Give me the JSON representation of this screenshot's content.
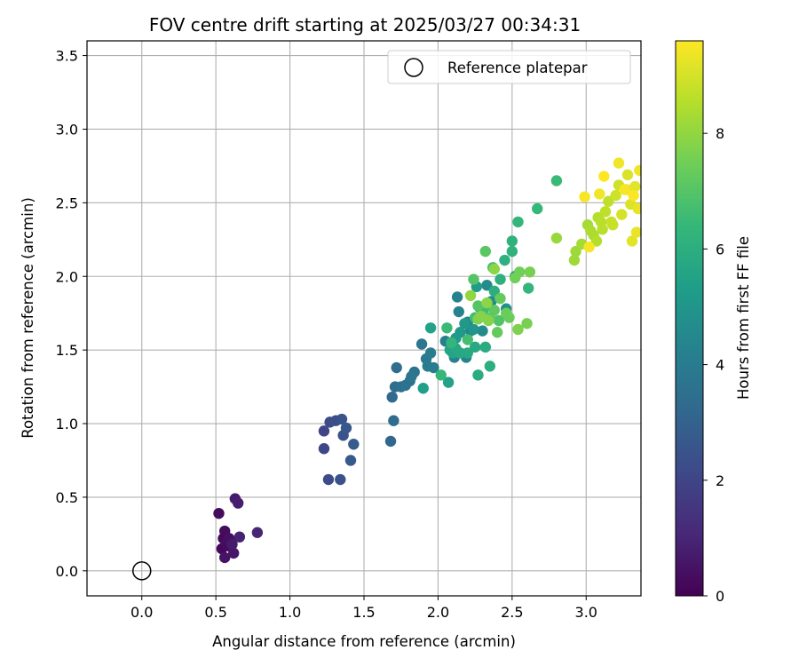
{
  "chart_data": {
    "type": "scatter",
    "title": "FOV centre drift starting at 2025/03/27 00:34:31",
    "xlabel": "Angular distance from reference (arcmin)",
    "ylabel": "Rotation from reference (arcmin)",
    "xlim": [
      -0.37,
      3.37
    ],
    "ylim": [
      -0.17,
      3.6
    ],
    "x_ticks": [
      "0.0",
      "0.5",
      "1.0",
      "1.5",
      "2.0",
      "2.5",
      "3.0"
    ],
    "y_ticks": [
      "0.0",
      "0.5",
      "1.0",
      "1.5",
      "2.0",
      "2.5",
      "3.0",
      "3.5"
    ],
    "grid": true,
    "legend": {
      "placement": "top-right",
      "entries": [
        "Reference platepar"
      ]
    },
    "reference_point": {
      "name": "Reference platepar",
      "x": 0.0,
      "y": 0.0,
      "marker": "open-circle"
    },
    "colorbar": {
      "label": "Hours from first FF file",
      "colormap": "viridis",
      "range": [
        0,
        9.6
      ],
      "ticks": [
        "0",
        "2",
        "4",
        "6",
        "8"
      ]
    },
    "colors": {
      "viridis": [
        "#440154",
        "#482878",
        "#3e4989",
        "#31688e",
        "#26828e",
        "#1f9e89",
        "#35b779",
        "#6ece58",
        "#b5de2b",
        "#fde725"
      ],
      "grid": "#b0b0b0",
      "axes": "#000000"
    },
    "points": [
      [
        0.52,
        0.39,
        0.3
      ],
      [
        0.54,
        0.15,
        0.2
      ],
      [
        0.55,
        0.22,
        0.2
      ],
      [
        0.56,
        0.27,
        0.3
      ],
      [
        0.57,
        0.19,
        0.4
      ],
      [
        0.58,
        0.17,
        0.3
      ],
      [
        0.56,
        0.09,
        0.5
      ],
      [
        0.6,
        0.2,
        0.5
      ],
      [
        0.62,
        0.12,
        0.6
      ],
      [
        0.63,
        0.49,
        0.7
      ],
      [
        0.65,
        0.46,
        0.8
      ],
      [
        0.66,
        0.23,
        0.9
      ],
      [
        0.78,
        0.26,
        1.0
      ],
      [
        0.59,
        0.22,
        0.4
      ],
      [
        0.61,
        0.18,
        0.7
      ],
      [
        1.23,
        0.95,
        2.0
      ],
      [
        1.23,
        0.83,
        2.1
      ],
      [
        1.26,
        0.62,
        2.2
      ],
      [
        1.27,
        1.01,
        2.2
      ],
      [
        1.31,
        1.02,
        2.3
      ],
      [
        1.34,
        0.62,
        2.4
      ],
      [
        1.35,
        1.03,
        2.5
      ],
      [
        1.36,
        0.92,
        2.5
      ],
      [
        1.38,
        0.97,
        2.6
      ],
      [
        1.41,
        0.75,
        2.7
      ],
      [
        1.43,
        0.86,
        2.8
      ],
      [
        1.68,
        0.88,
        3.2
      ],
      [
        1.69,
        1.18,
        3.3
      ],
      [
        1.7,
        1.02,
        3.4
      ],
      [
        1.71,
        1.25,
        3.5
      ],
      [
        1.72,
        1.38,
        3.5
      ],
      [
        1.75,
        1.25,
        3.6
      ],
      [
        1.78,
        1.26,
        3.6
      ],
      [
        1.81,
        1.29,
        3.7
      ],
      [
        1.84,
        1.35,
        3.7
      ],
      [
        1.82,
        1.32,
        3.8
      ],
      [
        1.89,
        1.54,
        3.8
      ],
      [
        1.92,
        1.44,
        3.9
      ],
      [
        1.93,
        1.39,
        4.0
      ],
      [
        1.95,
        1.48,
        4.0
      ],
      [
        1.97,
        1.38,
        4.1
      ],
      [
        2.05,
        1.56,
        4.1
      ],
      [
        2.11,
        1.45,
        4.2
      ],
      [
        2.13,
        1.86,
        4.3
      ],
      [
        2.14,
        1.76,
        4.3
      ],
      [
        2.19,
        1.45,
        4.3
      ],
      [
        2.2,
        1.69,
        4.4
      ],
      [
        2.22,
        1.63,
        4.5
      ],
      [
        2.28,
        1.79,
        4.5
      ],
      [
        2.3,
        1.63,
        4.6
      ],
      [
        2.33,
        1.94,
        4.6
      ],
      [
        2.36,
        1.83,
        4.7
      ],
      [
        2.46,
        1.78,
        4.8
      ],
      [
        2.52,
        2.0,
        4.9
      ],
      [
        2.24,
        1.64,
        5.0
      ],
      [
        2.18,
        1.68,
        5.1
      ],
      [
        2.15,
        1.62,
        5.1
      ],
      [
        2.12,
        1.58,
        5.2
      ],
      [
        2.26,
        1.93,
        5.3
      ],
      [
        1.9,
        1.24,
        5.4
      ],
      [
        1.95,
        1.65,
        5.5
      ],
      [
        2.07,
        1.28,
        5.5
      ],
      [
        2.08,
        1.5,
        5.6
      ],
      [
        2.1,
        1.48,
        5.6
      ],
      [
        2.12,
        1.51,
        5.7
      ],
      [
        2.15,
        1.48,
        5.7
      ],
      [
        2.2,
        1.48,
        5.8
      ],
      [
        2.25,
        1.52,
        5.8
      ],
      [
        2.27,
        1.33,
        5.9
      ],
      [
        2.32,
        1.52,
        5.9
      ],
      [
        2.35,
        1.39,
        6.0
      ],
      [
        2.38,
        1.9,
        6.0
      ],
      [
        2.42,
        1.98,
        6.1
      ],
      [
        2.45,
        2.11,
        6.1
      ],
      [
        2.5,
        2.17,
        6.2
      ],
      [
        2.5,
        2.24,
        6.2
      ],
      [
        2.54,
        2.37,
        6.3
      ],
      [
        2.61,
        1.92,
        6.3
      ],
      [
        2.67,
        2.46,
        6.4
      ],
      [
        2.8,
        2.65,
        6.5
      ],
      [
        2.25,
        1.72,
        6.6
      ],
      [
        2.31,
        1.78,
        6.6
      ],
      [
        2.06,
        1.65,
        6.5
      ],
      [
        2.02,
        1.33,
        6.4
      ],
      [
        2.09,
        1.55,
        6.3
      ],
      [
        2.2,
        1.57,
        6.7
      ],
      [
        2.37,
        2.06,
        6.8
      ],
      [
        2.41,
        1.7,
        6.9
      ],
      [
        2.24,
        1.98,
        7.0
      ],
      [
        2.27,
        1.8,
        7.0
      ],
      [
        2.32,
        2.17,
        7.1
      ],
      [
        2.35,
        1.72,
        7.2
      ],
      [
        2.38,
        1.77,
        7.2
      ],
      [
        2.4,
        1.62,
        7.3
      ],
      [
        2.42,
        1.85,
        7.3
      ],
      [
        2.46,
        1.75,
        7.4
      ],
      [
        2.48,
        1.72,
        7.4
      ],
      [
        2.52,
        1.99,
        7.5
      ],
      [
        2.55,
        2.03,
        7.5
      ],
      [
        2.6,
        1.68,
        7.6
      ],
      [
        2.62,
        2.03,
        7.6
      ],
      [
        2.54,
        1.64,
        7.7
      ],
      [
        2.27,
        1.71,
        7.7
      ],
      [
        2.29,
        1.73,
        7.8
      ],
      [
        2.34,
        1.7,
        7.8
      ],
      [
        2.33,
        1.82,
        7.9
      ],
      [
        2.38,
        2.05,
        7.9
      ],
      [
        2.22,
        1.87,
        8.0
      ],
      [
        2.8,
        2.26,
        8.1
      ],
      [
        2.92,
        2.11,
        8.2
      ],
      [
        2.93,
        2.17,
        8.2
      ],
      [
        2.97,
        2.22,
        8.3
      ],
      [
        3.01,
        2.35,
        8.3
      ],
      [
        3.03,
        2.31,
        8.4
      ],
      [
        3.05,
        2.28,
        8.4
      ],
      [
        3.07,
        2.24,
        8.5
      ],
      [
        3.08,
        2.4,
        8.5
      ],
      [
        3.1,
        2.37,
        8.6
      ],
      [
        3.11,
        2.32,
        8.6
      ],
      [
        3.13,
        2.44,
        8.7
      ],
      [
        3.15,
        2.51,
        8.7
      ],
      [
        3.17,
        2.37,
        8.8
      ],
      [
        3.18,
        2.35,
        8.8
      ],
      [
        3.2,
        2.55,
        8.9
      ],
      [
        3.22,
        2.62,
        8.9
      ],
      [
        3.24,
        2.42,
        9.0
      ],
      [
        3.27,
        2.59,
        9.0
      ],
      [
        3.28,
        2.69,
        9.1
      ],
      [
        3.3,
        2.49,
        9.1
      ],
      [
        3.31,
        2.24,
        9.2
      ],
      [
        3.33,
        2.61,
        9.2
      ],
      [
        3.34,
        2.3,
        9.3
      ],
      [
        3.35,
        2.46,
        9.3
      ],
      [
        3.36,
        2.72,
        9.4
      ],
      [
        3.22,
        2.77,
        9.4
      ],
      [
        2.99,
        2.54,
        9.5
      ],
      [
        3.02,
        2.2,
        9.5
      ],
      [
        3.12,
        2.68,
        9.6
      ],
      [
        3.26,
        2.59,
        9.5
      ],
      [
        3.09,
        2.56,
        9.4
      ],
      [
        3.32,
        2.55,
        9.6
      ]
    ]
  }
}
